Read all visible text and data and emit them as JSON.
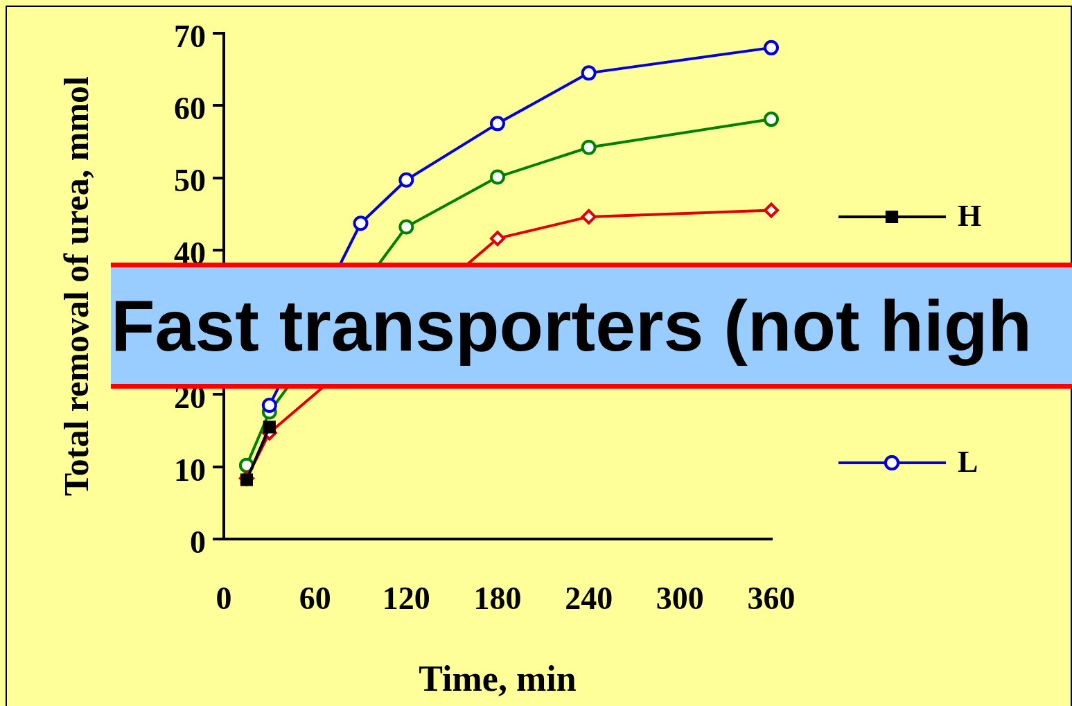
{
  "chart_data": {
    "type": "line",
    "xlabel": "Time, min",
    "ylabel": "Total removal of urea, mmol",
    "x": [
      15,
      30,
      90,
      120,
      180,
      240,
      360
    ],
    "xlim": [
      0,
      360
    ],
    "xticks": [
      0,
      60,
      120,
      180,
      240,
      300,
      360
    ],
    "ylim": [
      0,
      70
    ],
    "yticks": [
      0,
      10,
      20,
      40,
      50,
      60,
      70
    ],
    "grid": false,
    "legend": "right",
    "series": [
      {
        "name": "H",
        "color": "#000000",
        "marker": "square",
        "values": [
          8.2,
          15.5,
          null,
          null,
          null,
          null,
          null
        ]
      },
      {
        "color": "#008000",
        "marker": "circle",
        "values": [
          10.2,
          17.6,
          null,
          43.2,
          50.1,
          54.2,
          58.1
        ]
      },
      {
        "color": "#e00000",
        "marker": "diamond",
        "values": [
          8.4,
          14.7,
          null,
          null,
          41.6,
          44.6,
          45.5
        ]
      },
      {
        "name": "L",
        "color": "#0000dd",
        "marker": "circle",
        "values": [
          null,
          18.5,
          43.7,
          49.7,
          57.5,
          64.5,
          68.0
        ]
      }
    ],
    "annotations": [
      "Fast transporters (not high"
    ]
  }
}
